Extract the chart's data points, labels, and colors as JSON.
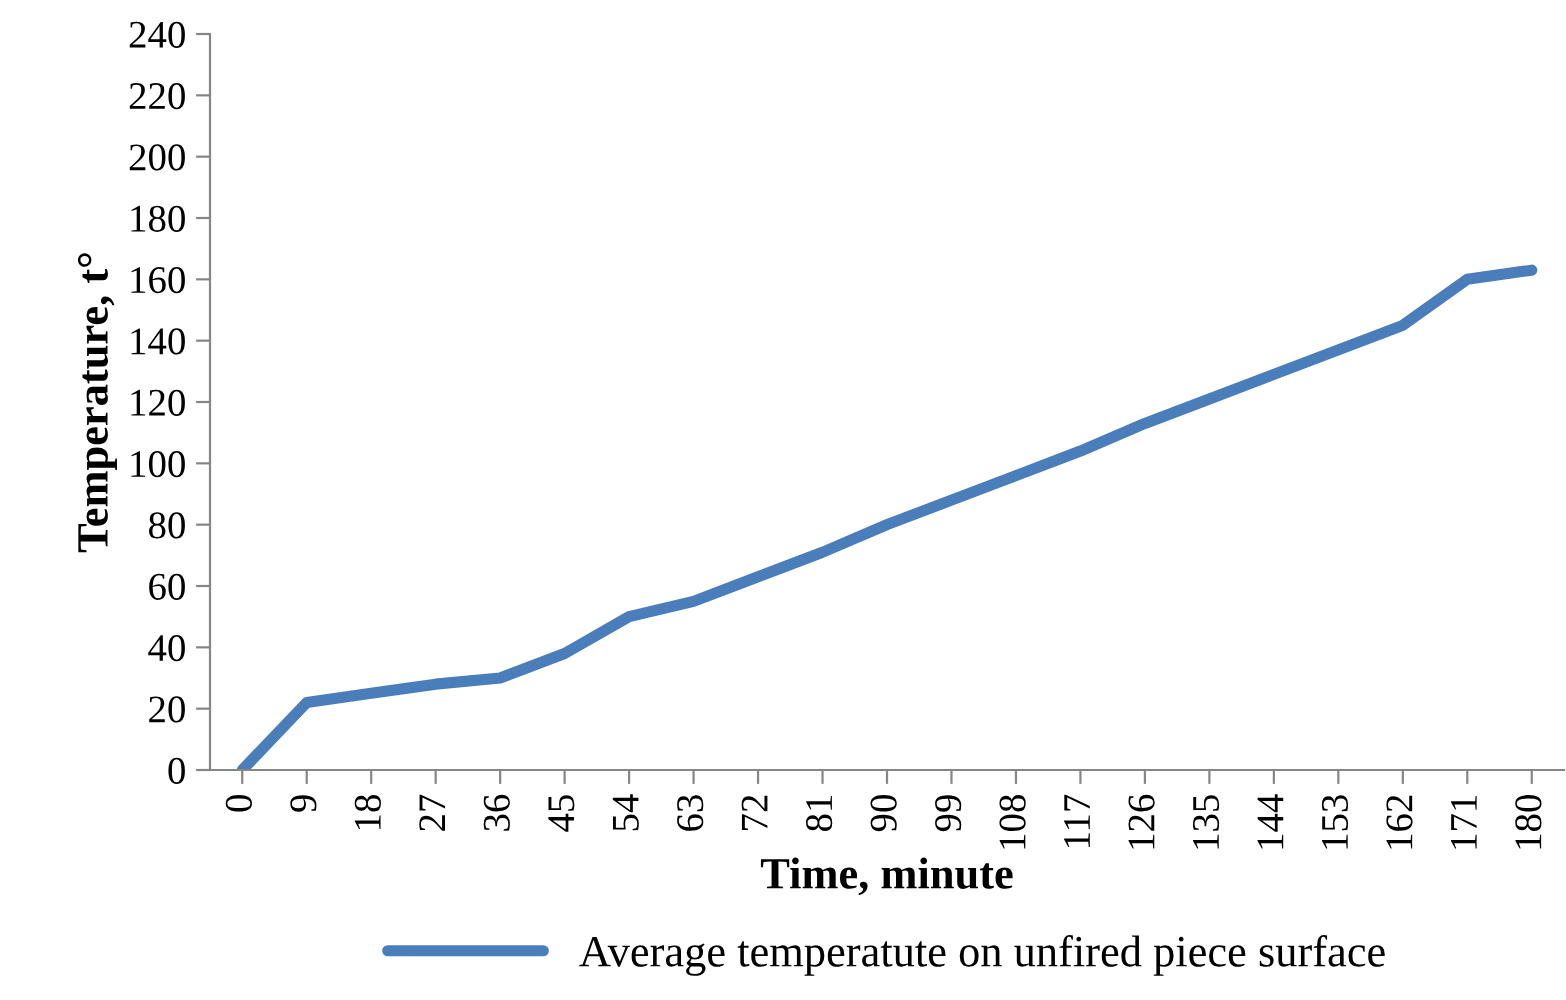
{
  "chart_data": {
    "type": "line",
    "xlabel": "Time, minute",
    "ylabel": "Temperature, t°",
    "categories": [
      "0",
      "9",
      "18",
      "27",
      "36",
      "45",
      "54",
      "63",
      "72",
      "81",
      "90",
      "99",
      "108",
      "117",
      "126",
      "135",
      "144",
      "153",
      "162",
      "171",
      "180"
    ],
    "series": [
      {
        "name": "Average temperatute on unfired piece surface",
        "color": "#4a7ebb",
        "values": [
          0,
          22,
          25,
          28,
          30,
          38,
          50,
          55,
          63,
          71,
          80,
          88,
          96,
          104,
          113,
          121,
          129,
          137,
          145,
          160,
          163
        ]
      }
    ],
    "ylim": [
      0,
      240
    ],
    "yticks": [
      0,
      20,
      40,
      60,
      80,
      100,
      120,
      140,
      160,
      180,
      200,
      220,
      240
    ],
    "grid": false,
    "legend": "bottom",
    "marker": "none",
    "line_style": "solid"
  }
}
